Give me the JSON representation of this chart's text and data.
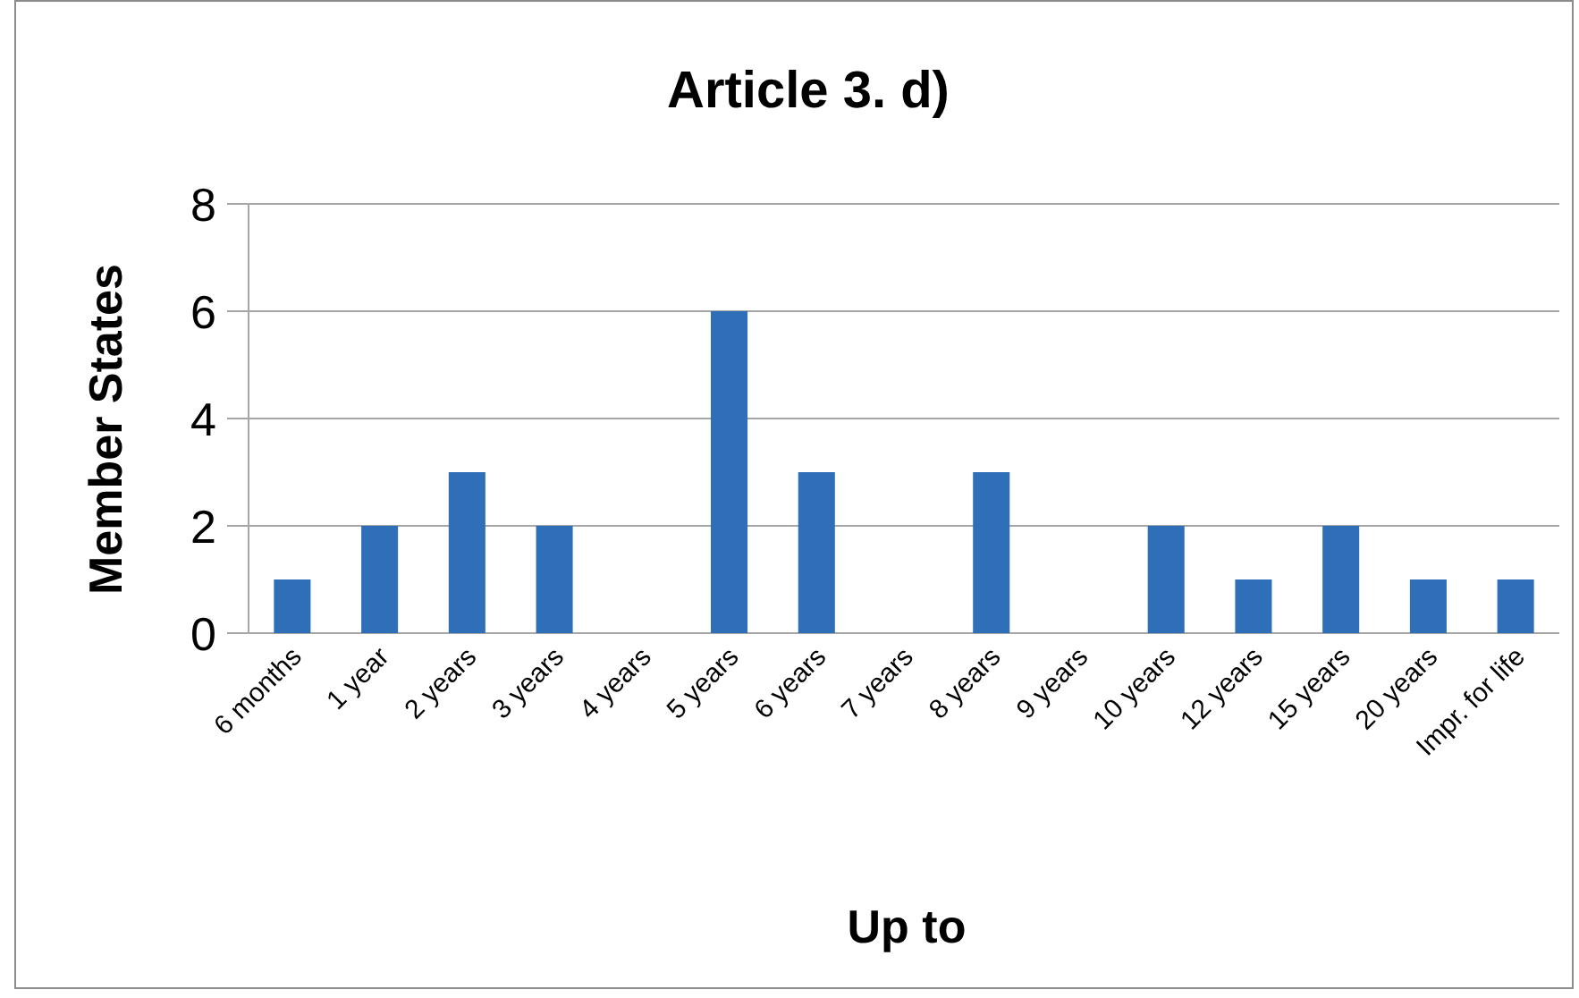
{
  "chart_data": {
    "type": "bar",
    "title": "Article 3. d)",
    "xlabel": "Up to",
    "ylabel": "Member States",
    "categories": [
      "6 months",
      "1 year",
      "2 years",
      "3 years",
      "4 years",
      "5 years",
      "6 years",
      "7 years",
      "8 years",
      "9 years",
      "10 years",
      "12 years",
      "15 years",
      "20 years",
      "Impr. for life"
    ],
    "values": [
      1,
      2,
      3,
      2,
      0,
      6,
      3,
      0,
      3,
      0,
      2,
      1,
      2,
      1,
      1
    ],
    "color": "#2f6fb8",
    "ylim": [
      0,
      8
    ],
    "yticks": [
      0,
      2,
      4,
      6,
      8
    ],
    "grid": "y"
  }
}
